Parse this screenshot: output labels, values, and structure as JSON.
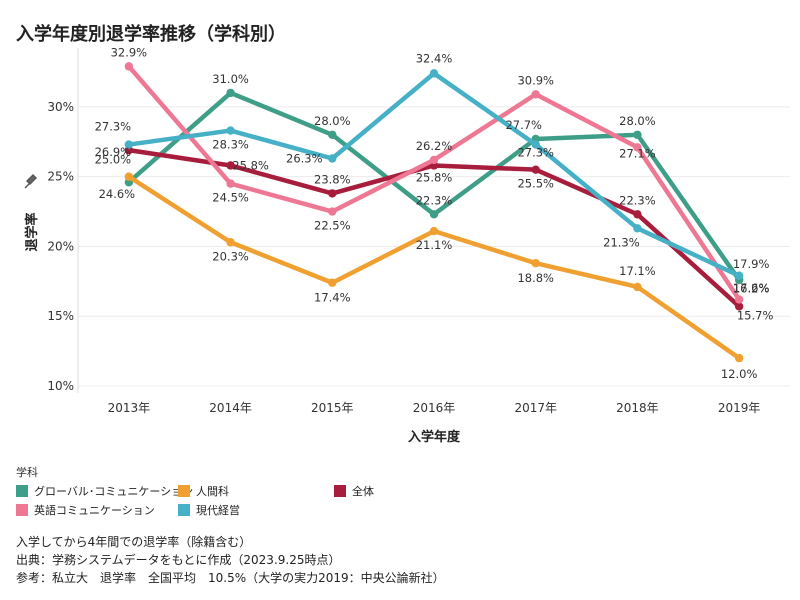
{
  "title": "入学年度別退学率推移（学科別）",
  "colors": {
    "global": "#3f9e87",
    "ningen": "#f0a030",
    "zentai": "#a71d3b",
    "eigo": "#ee7893",
    "gendai": "#45b0c6"
  },
  "chart_data": {
    "type": "line",
    "categories": [
      "2013年",
      "2014年",
      "2015年",
      "2016年",
      "2017年",
      "2018年",
      "2019年"
    ],
    "xlabel": "入学年度",
    "ylabel": "退学率",
    "y_ticks": [
      "10%",
      "15%",
      "20%",
      "25%",
      "30%"
    ],
    "ylim": [
      9.5,
      33.5
    ],
    "grid": true,
    "legend_title": "学科",
    "series": [
      {
        "key": "global",
        "name": "グローバル･コミュニケーション",
        "values": [
          24.6,
          31.0,
          28.0,
          22.3,
          27.7,
          28.0,
          17.6
        ],
        "labels": [
          "24.6%",
          "31.0%",
          "28.0%",
          "22.3%",
          "27.7%",
          "28.0%",
          "17.6%"
        ]
      },
      {
        "key": "ningen",
        "name": "人間科",
        "values": [
          25.0,
          20.3,
          17.4,
          21.1,
          18.8,
          17.1,
          12.0
        ],
        "labels": [
          "25.0%",
          "20.3%",
          "17.4%",
          "21.1%",
          "18.8%",
          "17.1%",
          "12.0%"
        ]
      },
      {
        "key": "zentai",
        "name": "全体",
        "values": [
          26.9,
          25.8,
          23.8,
          25.8,
          25.5,
          22.3,
          15.7
        ],
        "labels": [
          "26.9%",
          "25.8%",
          "23.8%",
          "25.8%",
          "25.5%",
          "22.3%",
          "15.7%"
        ]
      },
      {
        "key": "eigo",
        "name": "英語コミュニケーション",
        "values": [
          32.9,
          24.5,
          22.5,
          26.2,
          30.9,
          27.1,
          16.2
        ],
        "labels": [
          "32.9%",
          "24.5%",
          "22.5%",
          "26.2%",
          "30.9%",
          "27.1%",
          "16.2%"
        ]
      },
      {
        "key": "gendai",
        "name": "現代経営",
        "values": [
          27.3,
          28.3,
          26.3,
          32.4,
          27.3,
          21.3,
          17.9
        ],
        "labels": [
          "27.3%",
          "28.3%",
          "26.3%",
          "32.4%",
          "27.3%",
          "21.3%",
          "17.9%"
        ]
      }
    ]
  },
  "notes": [
    "入学してから4年間での退学率（除籍含む）",
    "出典：学務システムデータをもとに作成（2023.9.25時点）",
    "参考：私立大　退学率　全国平均　10.5%（大学の実力2019：中央公論新社）"
  ]
}
